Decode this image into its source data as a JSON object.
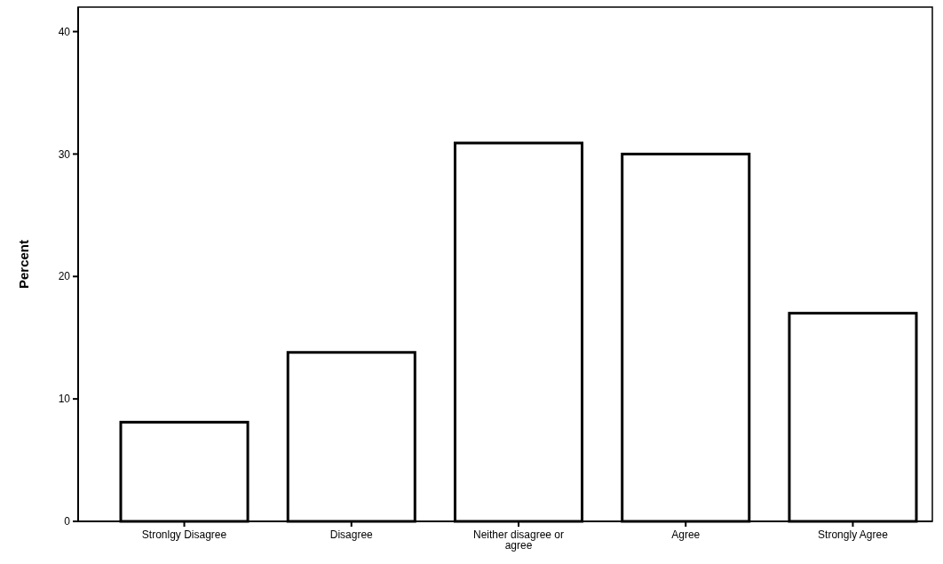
{
  "chart_data": {
    "type": "bar",
    "ylabel": "Percent",
    "categories": [
      "Stronlgy Disagree",
      "Disagree",
      "Neither disagree or agree",
      "Agree",
      "Strongly Agree"
    ],
    "values": [
      8.1,
      13.8,
      30.9,
      30.0,
      17.0
    ],
    "color": "#ffffff",
    "ylim": [
      0,
      42
    ],
    "yticks": [
      0,
      10,
      20,
      30,
      40
    ],
    "grid": false
  }
}
